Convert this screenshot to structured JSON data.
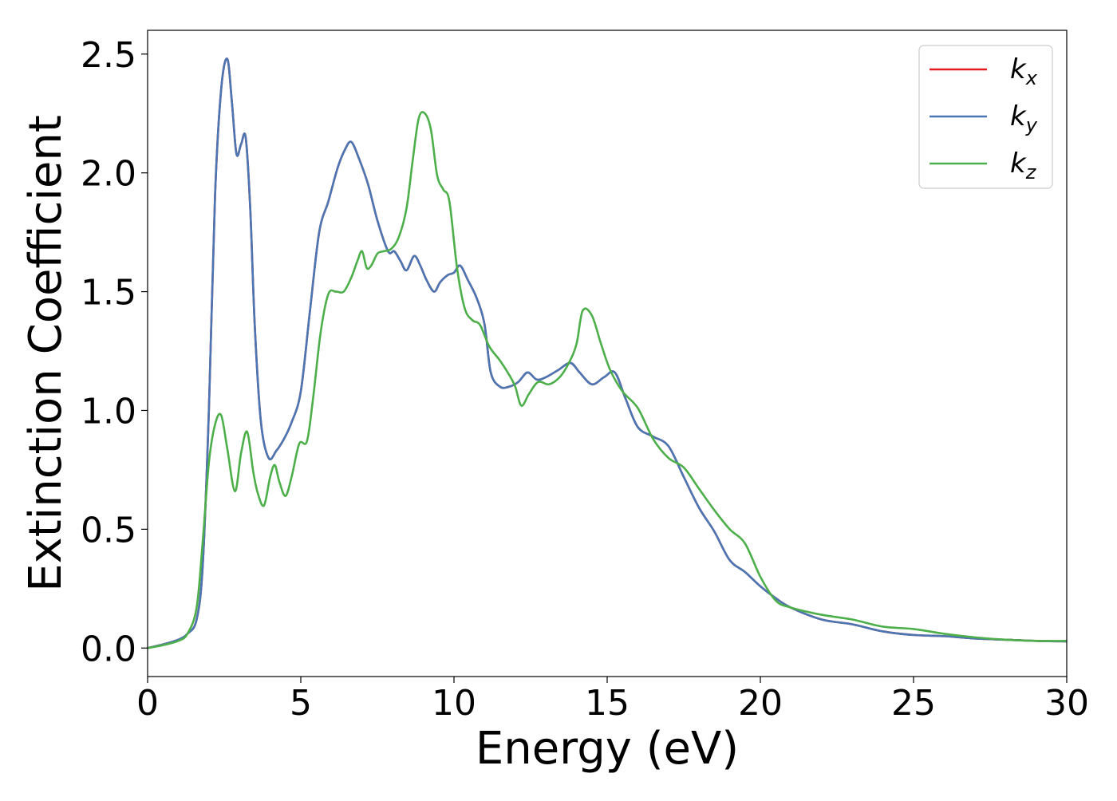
{
  "chart_data": {
    "type": "line",
    "title": "",
    "xlabel": "Energy (eV)",
    "ylabel": "Extinction Coefficient",
    "xlim": [
      0,
      30
    ],
    "ylim": [
      -0.12,
      2.6
    ],
    "xticks": [
      0,
      5,
      10,
      15,
      20,
      25,
      30
    ],
    "xtick_labels": [
      "0",
      "5",
      "10",
      "15",
      "20",
      "25",
      "30"
    ],
    "yticks": [
      0.0,
      0.5,
      1.0,
      1.5,
      2.0,
      2.5
    ],
    "ytick_labels": [
      "0.0",
      "0.5",
      "1.0",
      "1.5",
      "2.0",
      "2.5"
    ],
    "grid": false,
    "legend_position": "top-right",
    "series": [
      {
        "name": "k_x",
        "label_base": "k",
        "label_sub": "x",
        "color": "#e41a1c",
        "x": [
          0,
          0.5,
          1.0,
          1.3,
          1.6,
          1.8,
          2.0,
          2.2,
          2.4,
          2.6,
          2.75,
          2.9,
          3.05,
          3.2,
          3.35,
          3.5,
          3.7,
          3.95,
          4.2,
          4.45,
          4.7,
          5.0,
          5.3,
          5.6,
          5.9,
          6.2,
          6.45,
          6.65,
          6.9,
          7.2,
          7.5,
          7.85,
          8.05,
          8.25,
          8.45,
          8.7,
          8.9,
          9.1,
          9.35,
          9.55,
          9.8,
          10.0,
          10.2,
          10.45,
          10.75,
          11.0,
          11.2,
          11.5,
          11.8,
          12.1,
          12.4,
          12.7,
          13.0,
          13.4,
          13.8,
          14.1,
          14.5,
          14.9,
          15.25,
          15.6,
          16.0,
          16.5,
          17.0,
          17.5,
          18.0,
          18.5,
          19.0,
          19.5,
          20.0,
          20.5,
          21.0,
          22.0,
          23.0,
          24.0,
          25.0,
          26.0,
          27.0,
          28.0,
          29.0,
          30.0
        ],
        "y": [
          0.0,
          0.015,
          0.035,
          0.06,
          0.12,
          0.35,
          1.0,
          1.9,
          2.35,
          2.48,
          2.3,
          2.08,
          2.12,
          2.15,
          1.85,
          1.35,
          0.95,
          0.8,
          0.83,
          0.88,
          0.95,
          1.08,
          1.42,
          1.75,
          1.88,
          2.02,
          2.1,
          2.13,
          2.06,
          1.95,
          1.8,
          1.67,
          1.67,
          1.63,
          1.59,
          1.65,
          1.61,
          1.55,
          1.5,
          1.54,
          1.57,
          1.58,
          1.61,
          1.55,
          1.47,
          1.36,
          1.16,
          1.1,
          1.1,
          1.12,
          1.16,
          1.13,
          1.14,
          1.17,
          1.2,
          1.16,
          1.11,
          1.14,
          1.16,
          1.05,
          0.93,
          0.89,
          0.85,
          0.72,
          0.59,
          0.49,
          0.37,
          0.32,
          0.26,
          0.21,
          0.17,
          0.12,
          0.1,
          0.07,
          0.055,
          0.05,
          0.04,
          0.035,
          0.03,
          0.028
        ]
      },
      {
        "name": "k_y",
        "label_base": "k",
        "label_sub": "y",
        "color": "#4a77b4",
        "x": [
          0,
          0.5,
          1.0,
          1.3,
          1.6,
          1.8,
          2.0,
          2.2,
          2.4,
          2.6,
          2.75,
          2.9,
          3.05,
          3.2,
          3.35,
          3.5,
          3.7,
          3.95,
          4.2,
          4.45,
          4.7,
          5.0,
          5.3,
          5.6,
          5.9,
          6.2,
          6.45,
          6.65,
          6.9,
          7.2,
          7.5,
          7.85,
          8.05,
          8.25,
          8.45,
          8.7,
          8.9,
          9.1,
          9.35,
          9.55,
          9.8,
          10.0,
          10.2,
          10.45,
          10.75,
          11.0,
          11.2,
          11.5,
          11.8,
          12.1,
          12.4,
          12.7,
          13.0,
          13.4,
          13.8,
          14.1,
          14.5,
          14.9,
          15.25,
          15.6,
          16.0,
          16.5,
          17.0,
          17.5,
          18.0,
          18.5,
          19.0,
          19.5,
          20.0,
          20.5,
          21.0,
          22.0,
          23.0,
          24.0,
          25.0,
          26.0,
          27.0,
          28.0,
          29.0,
          30.0
        ],
        "y": [
          0.0,
          0.015,
          0.035,
          0.06,
          0.12,
          0.35,
          1.0,
          1.9,
          2.35,
          2.48,
          2.3,
          2.08,
          2.12,
          2.15,
          1.85,
          1.35,
          0.95,
          0.8,
          0.83,
          0.88,
          0.95,
          1.08,
          1.42,
          1.75,
          1.88,
          2.02,
          2.1,
          2.13,
          2.06,
          1.95,
          1.8,
          1.67,
          1.67,
          1.63,
          1.59,
          1.65,
          1.61,
          1.55,
          1.5,
          1.54,
          1.57,
          1.58,
          1.61,
          1.55,
          1.47,
          1.36,
          1.16,
          1.1,
          1.1,
          1.12,
          1.16,
          1.13,
          1.14,
          1.17,
          1.2,
          1.16,
          1.11,
          1.14,
          1.16,
          1.05,
          0.93,
          0.89,
          0.85,
          0.72,
          0.59,
          0.49,
          0.37,
          0.32,
          0.26,
          0.21,
          0.17,
          0.12,
          0.1,
          0.07,
          0.055,
          0.05,
          0.04,
          0.035,
          0.03,
          0.028
        ]
      },
      {
        "name": "k_z",
        "label_base": "k",
        "label_sub": "z",
        "color": "#4daf4a",
        "x": [
          0,
          0.5,
          1.0,
          1.3,
          1.6,
          1.8,
          2.0,
          2.2,
          2.4,
          2.6,
          2.85,
          3.05,
          3.25,
          3.45,
          3.6,
          3.8,
          4.0,
          4.15,
          4.3,
          4.5,
          4.7,
          4.95,
          5.2,
          5.4,
          5.65,
          5.9,
          6.15,
          6.4,
          6.65,
          6.85,
          7.0,
          7.15,
          7.3,
          7.5,
          7.7,
          7.95,
          8.2,
          8.45,
          8.65,
          8.85,
          9.05,
          9.25,
          9.45,
          9.65,
          9.85,
          10.1,
          10.35,
          10.6,
          10.85,
          11.15,
          11.5,
          11.8,
          12.0,
          12.2,
          12.45,
          12.75,
          13.1,
          13.45,
          13.75,
          14.0,
          14.2,
          14.5,
          14.8,
          15.1,
          15.5,
          16.0,
          16.5,
          17.0,
          17.5,
          18.0,
          18.5,
          19.0,
          19.5,
          20.0,
          20.5,
          21.0,
          22.0,
          23.0,
          24.0,
          25.0,
          26.0,
          27.0,
          28.0,
          29.0,
          30.0
        ],
        "y": [
          0.0,
          0.012,
          0.03,
          0.06,
          0.17,
          0.45,
          0.78,
          0.94,
          0.98,
          0.84,
          0.66,
          0.82,
          0.91,
          0.74,
          0.65,
          0.6,
          0.72,
          0.77,
          0.7,
          0.64,
          0.72,
          0.86,
          0.87,
          1.05,
          1.33,
          1.49,
          1.5,
          1.5,
          1.56,
          1.63,
          1.67,
          1.6,
          1.61,
          1.66,
          1.67,
          1.68,
          1.73,
          1.85,
          2.05,
          2.23,
          2.25,
          2.18,
          1.99,
          1.93,
          1.88,
          1.6,
          1.43,
          1.38,
          1.36,
          1.27,
          1.21,
          1.15,
          1.1,
          1.02,
          1.07,
          1.12,
          1.11,
          1.14,
          1.2,
          1.28,
          1.42,
          1.4,
          1.28,
          1.17,
          1.08,
          1.01,
          0.88,
          0.8,
          0.76,
          0.67,
          0.58,
          0.5,
          0.44,
          0.3,
          0.2,
          0.17,
          0.14,
          0.12,
          0.09,
          0.08,
          0.06,
          0.045,
          0.035,
          0.03,
          0.03
        ]
      }
    ]
  }
}
